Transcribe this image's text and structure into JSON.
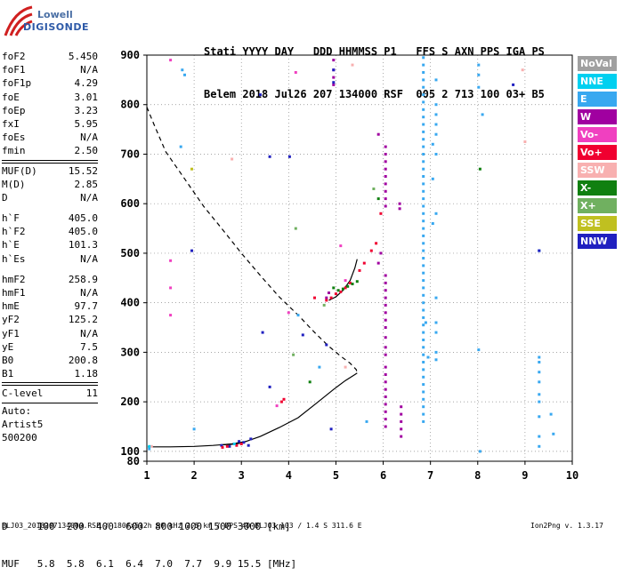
{
  "logo": {
    "line1": "Lowell",
    "line2": "DIGISONDE"
  },
  "header": {
    "line1": "Stati YYYY DAY   DDD HHMMSS P1   FFS S AXN PPS IGA PS",
    "line2": "Belem 2018 Jul26 207 134000 RSF  005 2 713 100 03+ B5"
  },
  "params": {
    "group1": [
      {
        "name": "foF2",
        "value": "5.450"
      },
      {
        "name": "foF1",
        "value": "N/A"
      },
      {
        "name": "foF1p",
        "value": "4.29"
      },
      {
        "name": "foE",
        "value": "3.01"
      },
      {
        "name": "foEp",
        "value": "3.23"
      },
      {
        "name": "fxI",
        "value": "5.95"
      },
      {
        "name": "foEs",
        "value": "N/A"
      },
      {
        "name": "fmin",
        "value": "2.50"
      }
    ],
    "group2": [
      {
        "name": "MUF(D)",
        "value": "15.52"
      },
      {
        "name": "M(D)",
        "value": "2.85"
      },
      {
        "name": "D",
        "value": "N/A"
      }
    ],
    "group3": [
      {
        "name": "h`F",
        "value": "405.0"
      },
      {
        "name": "h`F2",
        "value": "405.0"
      },
      {
        "name": "h`E",
        "value": "101.3"
      },
      {
        "name": "h`Es",
        "value": "N/A"
      }
    ],
    "group4": [
      {
        "name": "hmF2",
        "value": "258.9"
      },
      {
        "name": "hmF1",
        "value": "N/A"
      },
      {
        "name": "hmE",
        "value": "97.7"
      },
      {
        "name": "yF2",
        "value": "125.2"
      },
      {
        "name": "yF1",
        "value": "N/A"
      },
      {
        "name": "yE",
        "value": "7.5"
      },
      {
        "name": "B0",
        "value": "200.8"
      },
      {
        "name": "B1",
        "value": "1.18"
      }
    ],
    "group5": [
      {
        "name": "C-level",
        "value": "11"
      }
    ],
    "autoscaling": {
      "label": "Auto:",
      "system": "Artist5",
      "version": "500200"
    }
  },
  "legend": [
    {
      "label": "NoVal",
      "color": "#a0a0a0"
    },
    {
      "label": "NNE",
      "color": "#00d0f0"
    },
    {
      "label": "E",
      "color": "#38a8f0"
    },
    {
      "label": "W",
      "color": "#a000a0"
    },
    {
      "label": "Vo-",
      "color": "#f040c0"
    },
    {
      "label": "Vo+",
      "color": "#f00030"
    },
    {
      "label": "SSW",
      "color": "#f8b0b0"
    },
    {
      "label": "X-",
      "color": "#108010"
    },
    {
      "label": "X+",
      "color": "#70b060"
    },
    {
      "label": "SSE",
      "color": "#c0c020"
    },
    {
      "label": "NNW",
      "color": "#2020c0"
    }
  ],
  "muf_table": {
    "row1": "D     100  200  400  600  800 1000 1500 3000 [km]",
    "row2": "MUF   5.8  5.8  6.1  6.4  7.0  7.7  9.9 15.5 [MHz]"
  },
  "footer": "BLJ03_2018207134000.RSF / 180fx512h 50 kHz 2.5 km / DPS-4D BLJ03 103 / 1.4 S 311.6 E",
  "version": "Ion2Png v. 1.3.17",
  "chart_data": {
    "type": "scatter",
    "title": "",
    "xlabel": "",
    "ylabel": "",
    "xlim": [
      1,
      10
    ],
    "ylim": [
      80,
      900
    ],
    "x_ticks": [
      1,
      2,
      3,
      4,
      5,
      6,
      7,
      8,
      9,
      10
    ],
    "y_ticks": [
      80,
      100,
      200,
      300,
      400,
      500,
      600,
      700,
      800,
      900
    ],
    "grid": "dotted",
    "series": [
      {
        "name": "E",
        "color": "#38a8f0",
        "points": [
          [
            6.85,
            895
          ],
          [
            6.85,
            880
          ],
          [
            6.85,
            865
          ],
          [
            6.85,
            850
          ],
          [
            6.85,
            835
          ],
          [
            6.85,
            820
          ],
          [
            6.85,
            805
          ],
          [
            6.85,
            790
          ],
          [
            6.85,
            775
          ],
          [
            6.85,
            760
          ],
          [
            6.85,
            745
          ],
          [
            6.85,
            730
          ],
          [
            6.85,
            715
          ],
          [
            6.85,
            700
          ],
          [
            6.85,
            685
          ],
          [
            6.85,
            670
          ],
          [
            6.85,
            655
          ],
          [
            6.85,
            640
          ],
          [
            6.85,
            625
          ],
          [
            6.85,
            610
          ],
          [
            6.85,
            595
          ],
          [
            6.85,
            580
          ],
          [
            6.85,
            565
          ],
          [
            6.85,
            550
          ],
          [
            6.85,
            535
          ],
          [
            6.85,
            520
          ],
          [
            6.85,
            505
          ],
          [
            6.85,
            490
          ],
          [
            6.85,
            475
          ],
          [
            6.85,
            460
          ],
          [
            6.85,
            445
          ],
          [
            6.85,
            430
          ],
          [
            6.85,
            415
          ],
          [
            6.85,
            400
          ],
          [
            6.85,
            385
          ],
          [
            6.85,
            370
          ],
          [
            6.85,
            355
          ],
          [
            6.85,
            340
          ],
          [
            6.85,
            325
          ],
          [
            6.85,
            310
          ],
          [
            6.85,
            295
          ],
          [
            6.85,
            280
          ],
          [
            6.85,
            265
          ],
          [
            6.85,
            250
          ],
          [
            6.85,
            235
          ],
          [
            6.85,
            220
          ],
          [
            6.85,
            205
          ],
          [
            6.85,
            190
          ],
          [
            6.85,
            175
          ],
          [
            6.85,
            160
          ],
          [
            7.12,
            850
          ],
          [
            7.12,
            800
          ],
          [
            7.12,
            780
          ],
          [
            7.12,
            760
          ],
          [
            7.12,
            740
          ],
          [
            7.12,
            700
          ],
          [
            7.12,
            580
          ],
          [
            7.12,
            410
          ],
          [
            7.12,
            360
          ],
          [
            7.12,
            340
          ],
          [
            7.12,
            300
          ],
          [
            7.12,
            285
          ],
          [
            7.05,
            720
          ],
          [
            7.05,
            650
          ],
          [
            7.05,
            560
          ],
          [
            6.95,
            290
          ],
          [
            6.9,
            360
          ],
          [
            8.02,
            880
          ],
          [
            8.02,
            860
          ],
          [
            8.02,
            835
          ],
          [
            8.02,
            305
          ],
          [
            8.1,
            780
          ],
          [
            8.05,
            100
          ],
          [
            9.3,
            505
          ],
          [
            9.3,
            290
          ],
          [
            9.3,
            280
          ],
          [
            9.3,
            260
          ],
          [
            9.3,
            240
          ],
          [
            9.3,
            215
          ],
          [
            9.3,
            200
          ],
          [
            9.3,
            170
          ],
          [
            9.3,
            130
          ],
          [
            9.3,
            110
          ],
          [
            9.55,
            175
          ],
          [
            9.6,
            135
          ],
          [
            1.75,
            870
          ],
          [
            1.8,
            860
          ],
          [
            1.72,
            715
          ],
          [
            2.0,
            145
          ],
          [
            4.65,
            270
          ],
          [
            5.65,
            160
          ],
          [
            4.2,
            375
          ],
          [
            1.05,
            105
          ]
        ]
      },
      {
        "name": "W",
        "color": "#a000a0",
        "points": [
          [
            6.05,
            715
          ],
          [
            6.05,
            700
          ],
          [
            6.05,
            685
          ],
          [
            6.05,
            670
          ],
          [
            6.05,
            655
          ],
          [
            6.05,
            640
          ],
          [
            6.05,
            625
          ],
          [
            6.05,
            610
          ],
          [
            6.05,
            595
          ],
          [
            6.05,
            455
          ],
          [
            6.05,
            440
          ],
          [
            6.05,
            425
          ],
          [
            6.05,
            410
          ],
          [
            6.05,
            395
          ],
          [
            6.05,
            380
          ],
          [
            6.05,
            365
          ],
          [
            6.05,
            350
          ],
          [
            6.05,
            330
          ],
          [
            6.05,
            310
          ],
          [
            6.05,
            295
          ],
          [
            6.05,
            270
          ],
          [
            6.05,
            255
          ],
          [
            6.05,
            240
          ],
          [
            6.05,
            225
          ],
          [
            6.05,
            210
          ],
          [
            6.05,
            195
          ],
          [
            6.05,
            180
          ],
          [
            6.05,
            165
          ],
          [
            6.05,
            150
          ],
          [
            6.38,
            190
          ],
          [
            6.38,
            175
          ],
          [
            6.38,
            160
          ],
          [
            6.38,
            145
          ],
          [
            6.38,
            130
          ],
          [
            6.35,
            600
          ],
          [
            6.35,
            590
          ],
          [
            4.95,
            890
          ],
          [
            4.95,
            870
          ],
          [
            4.95,
            855
          ],
          [
            4.95,
            840
          ],
          [
            5.9,
            740
          ],
          [
            5.95,
            500
          ],
          [
            5.9,
            480
          ],
          [
            4.8,
            410
          ],
          [
            4.85,
            420
          ]
        ]
      },
      {
        "name": "NNW",
        "color": "#2020c0",
        "points": [
          [
            3.4,
            820
          ],
          [
            3.6,
            695
          ],
          [
            4.02,
            695
          ],
          [
            4.95,
            870
          ],
          [
            4.95,
            845
          ],
          [
            3.45,
            340
          ],
          [
            3.6,
            230
          ],
          [
            4.3,
            335
          ],
          [
            4.8,
            315
          ],
          [
            4.9,
            145
          ],
          [
            2.58,
            112
          ],
          [
            2.75,
            110
          ],
          [
            2.85,
            115
          ],
          [
            2.95,
            120
          ],
          [
            3.05,
            118
          ],
          [
            3.15,
            112
          ],
          [
            3.2,
            125
          ],
          [
            1.95,
            505
          ],
          [
            8.75,
            840
          ],
          [
            9.3,
            505
          ]
        ]
      },
      {
        "name": "Vo+",
        "color": "#f00030",
        "points": [
          [
            2.6,
            108
          ],
          [
            2.7,
            110
          ],
          [
            2.9,
            112
          ],
          [
            3.0,
            115
          ],
          [
            3.85,
            200
          ],
          [
            3.9,
            205
          ],
          [
            4.8,
            405
          ],
          [
            4.9,
            410
          ],
          [
            5.0,
            418
          ],
          [
            5.1,
            422
          ],
          [
            5.2,
            430
          ],
          [
            5.3,
            440
          ],
          [
            5.75,
            505
          ],
          [
            5.85,
            520
          ],
          [
            5.95,
            580
          ],
          [
            4.55,
            410
          ],
          [
            5.5,
            465
          ],
          [
            5.6,
            480
          ]
        ]
      },
      {
        "name": "Vo-",
        "color": "#f040c0",
        "points": [
          [
            1.5,
            890
          ],
          [
            1.5,
            485
          ],
          [
            1.5,
            430
          ],
          [
            1.5,
            375
          ],
          [
            4.15,
            865
          ],
          [
            3.75,
            192
          ],
          [
            5.1,
            515
          ],
          [
            5.2,
            445
          ],
          [
            4.0,
            380
          ]
        ]
      },
      {
        "name": "X-",
        "color": "#108010",
        "points": [
          [
            4.95,
            430
          ],
          [
            5.05,
            425
          ],
          [
            5.15,
            428
          ],
          [
            5.25,
            433
          ],
          [
            5.35,
            438
          ],
          [
            5.45,
            443
          ],
          [
            5.9,
            610
          ],
          [
            8.05,
            670
          ],
          [
            4.45,
            240
          ]
        ]
      },
      {
        "name": "X+",
        "color": "#70b060",
        "points": [
          [
            5.8,
            630
          ],
          [
            4.15,
            550
          ],
          [
            4.1,
            295
          ],
          [
            4.75,
            395
          ]
        ]
      },
      {
        "name": "SSW",
        "color": "#f8b0b0",
        "points": [
          [
            5.35,
            880
          ],
          [
            2.8,
            690
          ],
          [
            8.95,
            870
          ],
          [
            9.0,
            725
          ],
          [
            5.2,
            270
          ],
          [
            1.1,
            110
          ]
        ]
      },
      {
        "name": "SSE",
        "color": "#c0c020",
        "points": [
          [
            1.95,
            670
          ]
        ]
      },
      {
        "name": "NNE",
        "color": "#00d0f0",
        "points": [
          [
            1.05,
            110
          ],
          [
            2.85,
            115
          ]
        ]
      }
    ],
    "curves": [
      {
        "name": "",
        "style": "dashed",
        "points": [
          [
            1.0,
            795
          ],
          [
            1.15,
            760
          ],
          [
            1.4,
            705
          ],
          [
            1.8,
            650
          ],
          [
            2.2,
            595
          ],
          [
            2.6,
            548
          ],
          [
            3.0,
            500
          ],
          [
            3.4,
            455
          ],
          [
            3.8,
            412
          ],
          [
            4.2,
            375
          ],
          [
            4.55,
            340
          ],
          [
            4.85,
            312
          ],
          [
            5.1,
            292
          ],
          [
            5.3,
            278
          ],
          [
            5.43,
            265
          ],
          [
            5.45,
            258
          ]
        ]
      },
      {
        "name": "",
        "style": "solid",
        "points": [
          [
            1.02,
            109
          ],
          [
            1.5,
            109
          ],
          [
            2.0,
            110
          ],
          [
            2.4,
            112
          ],
          [
            2.8,
            115
          ],
          [
            3.1,
            120
          ],
          [
            3.4,
            130
          ],
          [
            3.8,
            148
          ],
          [
            4.2,
            168
          ],
          [
            4.6,
            198
          ],
          [
            4.95,
            225
          ],
          [
            5.2,
            243
          ],
          [
            5.4,
            255
          ],
          [
            5.45,
            258
          ]
        ]
      },
      {
        "name": "",
        "style": "solid",
        "points": [
          [
            4.85,
            405
          ],
          [
            5.0,
            412
          ],
          [
            5.15,
            425
          ],
          [
            5.3,
            445
          ],
          [
            5.4,
            470
          ],
          [
            5.45,
            488
          ]
        ]
      },
      {
        "name": "",
        "style": "solid",
        "points": [
          [
            2.55,
            113
          ],
          [
            2.75,
            114
          ],
          [
            2.95,
            116
          ],
          [
            3.1,
            120
          ]
        ]
      }
    ]
  }
}
